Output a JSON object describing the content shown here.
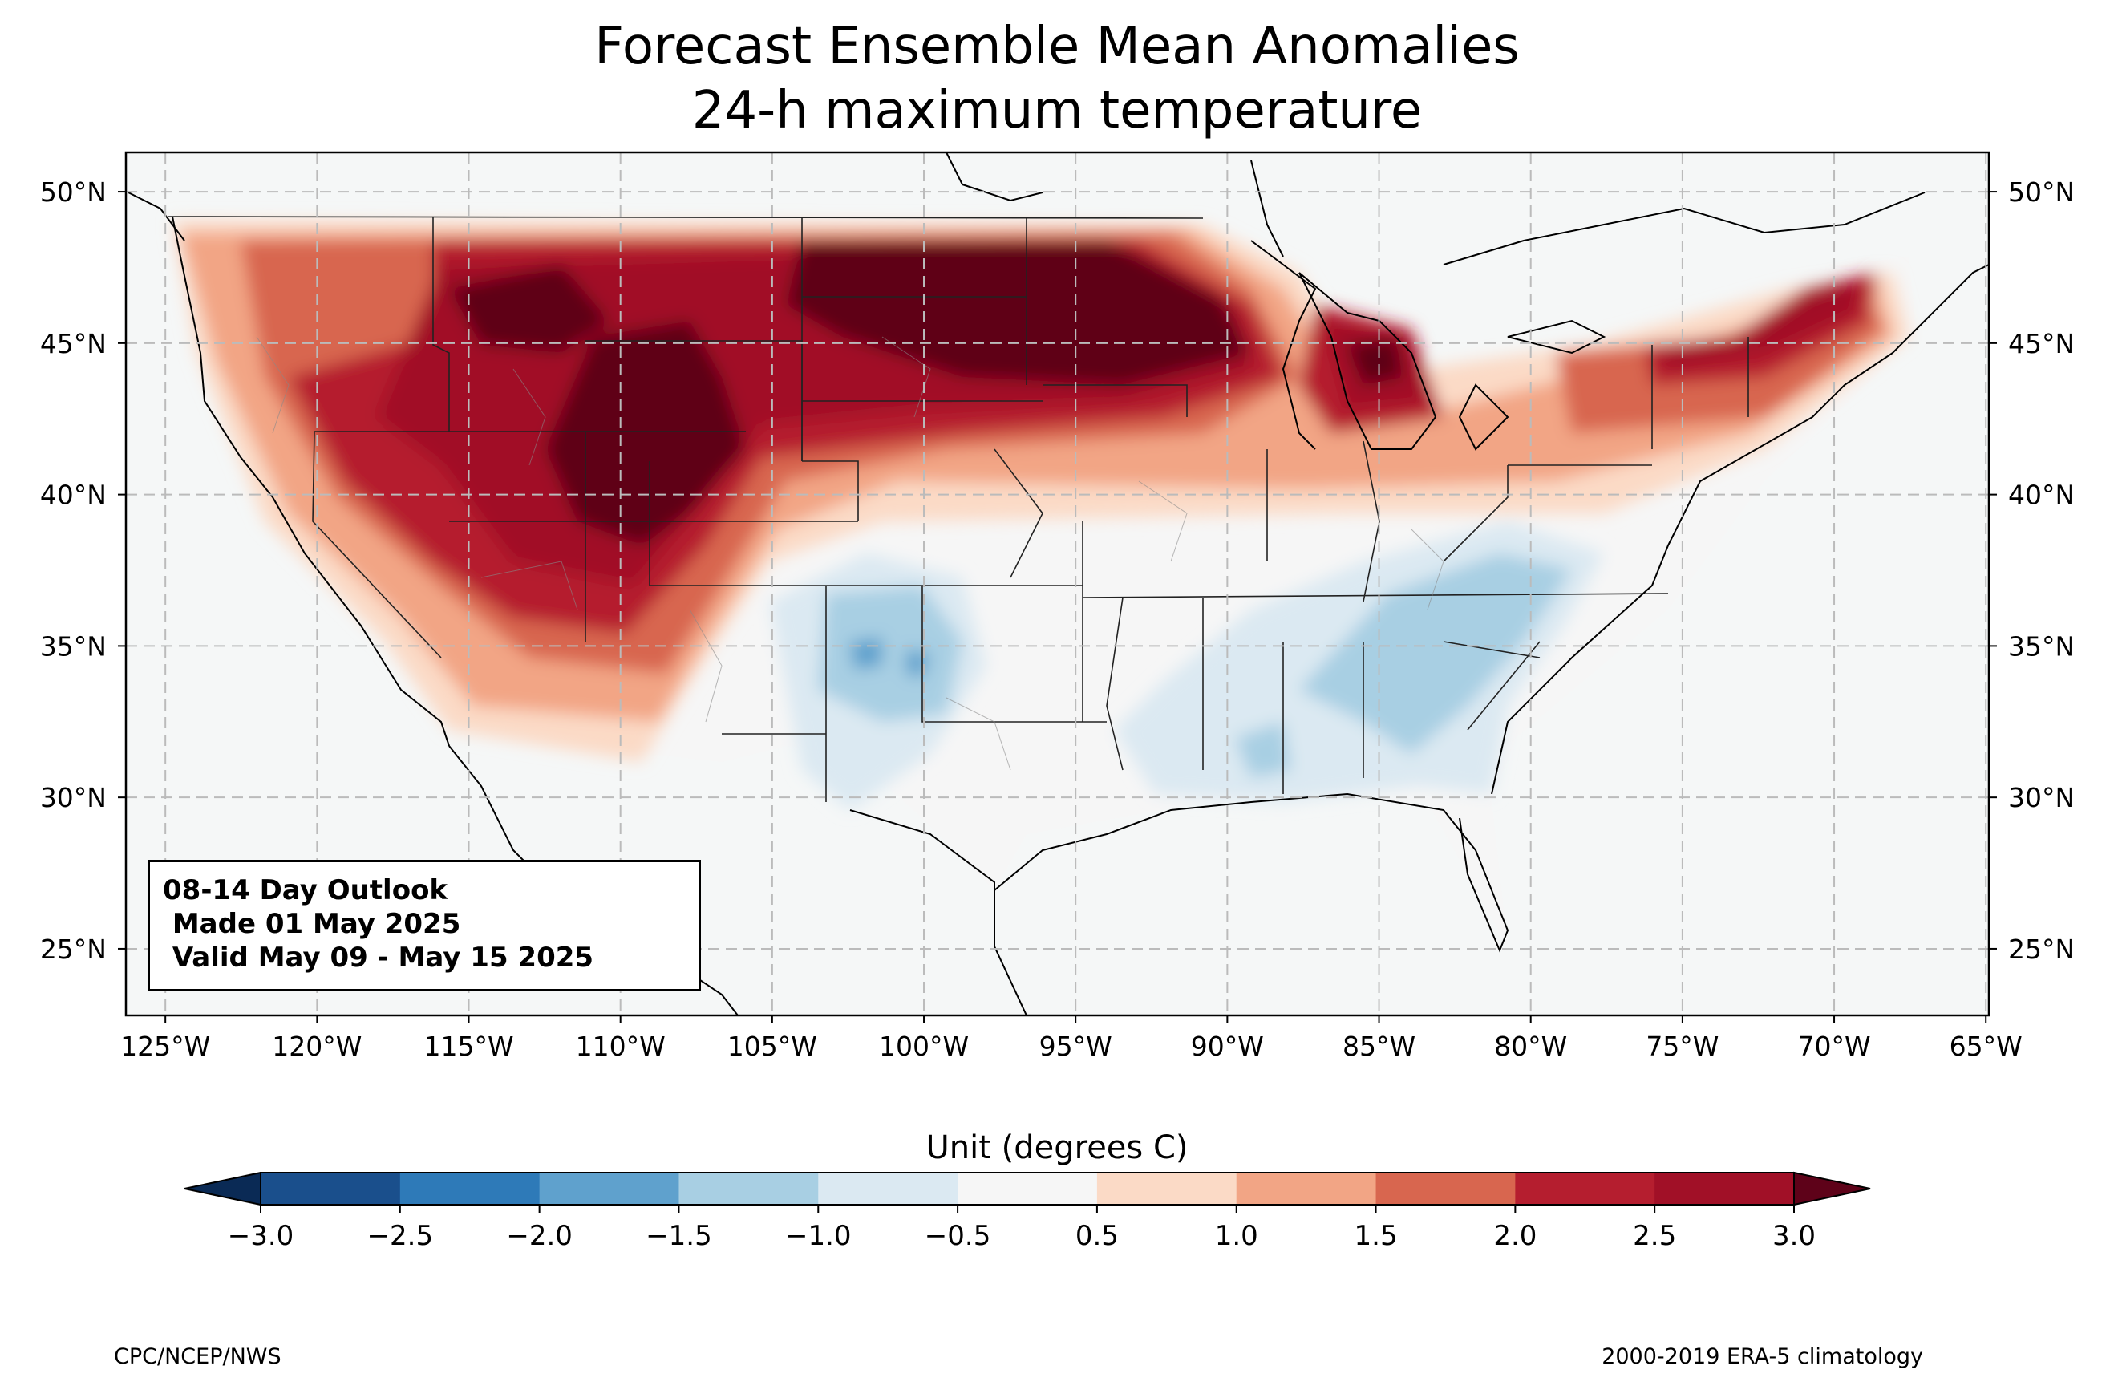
{
  "title": {
    "line1": "Forecast Ensemble Mean Anomalies",
    "line2": "24-h maximum temperature"
  },
  "map": {
    "projection": "PlateCarree",
    "extent": {
      "lon_min": -126.3,
      "lon_max": -64.9,
      "lat_min": 22.8,
      "lat_max": 51.3
    },
    "grid": "dashed",
    "lon_ticks": [
      -125,
      -120,
      -115,
      -110,
      -105,
      -100,
      -95,
      -90,
      -85,
      -80,
      -75,
      -70,
      -65
    ],
    "lon_tick_labels": [
      "125°W",
      "120°W",
      "115°W",
      "110°W",
      "105°W",
      "100°W",
      "95°W",
      "90°W",
      "85°W",
      "80°W",
      "75°W",
      "70°W",
      "65°W"
    ],
    "lat_ticks": [
      25,
      30,
      35,
      40,
      45,
      50
    ],
    "lat_tick_labels": [
      "25°N",
      "30°N",
      "35°N",
      "40°N",
      "45°N",
      "50°N"
    ],
    "ocean_color": "#f5f7f7",
    "anomaly_regions": [
      {
        "region": "West Coast / Pacific NW",
        "anomaly_c": 1.5
      },
      {
        "region": "Central California",
        "anomaly_c": 2.5
      },
      {
        "region": "Nevada / Utah / Colorado / Wyoming",
        "anomaly_c": 3.0
      },
      {
        "region": "Northern Plains / Upper Midwest",
        "anomaly_c": 3.0
      },
      {
        "region": "Northern Michigan",
        "anomaly_c": 3.0
      },
      {
        "region": "New York / New England",
        "anomaly_c": 2.5
      },
      {
        "region": "Oklahoma / North Texas",
        "anomaly_c": -1.5
      },
      {
        "region": "Southeast",
        "anomaly_c": -1.0
      }
    ]
  },
  "infobox": {
    "line1": "08-14 Day Outlook",
    "line2": " Made 01 May 2025",
    "line3": " Valid May 09 - May 15 2025"
  },
  "colorbar": {
    "title": "Unit (degrees C)",
    "ticks": [
      -3.0,
      -2.5,
      -2.0,
      -1.5,
      -1.0,
      -0.5,
      0.5,
      1.0,
      1.5,
      2.0,
      2.5,
      3.0
    ],
    "tick_labels": [
      "−3.0",
      "−2.5",
      "−2.0",
      "−1.5",
      "−1.0",
      "−0.5",
      "0.5",
      "1.0",
      "1.5",
      "2.0",
      "2.5",
      "3.0"
    ],
    "colors": [
      "#1a4f8c",
      "#2e7ab8",
      "#5fa1cd",
      "#a8cfe3",
      "#dbe9f2",
      "#f6f6f6",
      "#fbdac6",
      "#f2a585",
      "#d8664f",
      "#b51e2f",
      "#a11027"
    ],
    "extend_low_color": "#0a2a55",
    "extend_high_color": "#5e0219"
  },
  "footer": {
    "left": "CPC/NCEP/NWS",
    "right": "2000-2019 ERA-5 climatology"
  }
}
